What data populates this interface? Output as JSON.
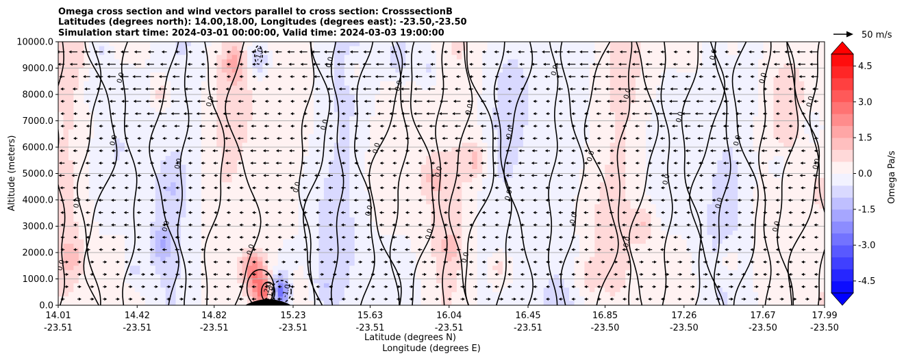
{
  "chart_data": {
    "type": "heatmap",
    "title_lines": [
      "Omega cross section and wind vectors parallel to cross section: CrosssectionB",
      "Latitudes (degrees north): 14.00,18.00, Longitudes (degrees east): -23.50,-23.50",
      "Simulation start time: 2024-03-01 00:00:00, Valid time: 2024-03-03 19:00:00"
    ],
    "xlabel_lines": [
      "Latitude (degrees N)",
      "Longitude (degrees E)"
    ],
    "ylabel": "Altitude (meters)",
    "x_ticks": [
      {
        "lat": "14.01",
        "lon": "-23.51",
        "pos": 14.01
      },
      {
        "lat": "14.42",
        "lon": "-23.51",
        "pos": 14.42
      },
      {
        "lat": "14.82",
        "lon": "-23.51",
        "pos": 14.82
      },
      {
        "lat": "15.23",
        "lon": "-23.51",
        "pos": 15.23
      },
      {
        "lat": "15.63",
        "lon": "-23.51",
        "pos": 15.63
      },
      {
        "lat": "16.04",
        "lon": "-23.51",
        "pos": 16.04
      },
      {
        "lat": "16.45",
        "lon": "-23.51",
        "pos": 16.45
      },
      {
        "lat": "16.85",
        "lon": "-23.50",
        "pos": 16.85
      },
      {
        "lat": "17.26",
        "lon": "-23.50",
        "pos": 17.26
      },
      {
        "lat": "17.67",
        "lon": "-23.50",
        "pos": 17.67
      },
      {
        "lat": "17.99",
        "lon": "-23.50",
        "pos": 17.99
      }
    ],
    "xlim": [
      14.01,
      17.99
    ],
    "y_ticks": [
      "0.0",
      "1000.0",
      "2000.0",
      "3000.0",
      "4000.0",
      "5000.0",
      "6000.0",
      "7000.0",
      "8000.0",
      "9000.0",
      "10000.0"
    ],
    "ylim": [
      0,
      10000
    ],
    "grid": "horizontal",
    "colorbar": {
      "label": "Omega Pa/s",
      "ticks": [
        "-4.5",
        "-3.0",
        "-1.5",
        "0.0",
        "1.5",
        "3.0",
        "4.5"
      ],
      "range": [
        -5.0,
        5.0
      ],
      "extend": "both",
      "colormap": "bwr",
      "low_color": "#0000ff",
      "high_color": "#ff0000"
    },
    "quiver_key": {
      "label": "50 m/s",
      "speed": 50
    },
    "contour_labels": [
      "0.0",
      "-1.0",
      "1.0",
      "2.0"
    ],
    "features": [
      {
        "lat": 14.18,
        "alt": 8200,
        "omega": -0.6
      },
      {
        "lat": 14.22,
        "alt": 9700,
        "omega": -0.8
      },
      {
        "lat": 14.55,
        "alt": 8000,
        "omega": 0.9
      },
      {
        "lat": 14.6,
        "alt": 4500,
        "omega": -0.5
      },
      {
        "lat": 14.55,
        "alt": 2300,
        "omega": -1.0
      },
      {
        "lat": 14.4,
        "alt": 1300,
        "omega": -0.7
      },
      {
        "lat": 14.92,
        "alt": 9200,
        "omega": 1.2
      },
      {
        "lat": 15.05,
        "alt": 9300,
        "omega": -1.2
      },
      {
        "lat": 15.02,
        "alt": 1300,
        "omega": 2.2
      },
      {
        "lat": 15.08,
        "alt": 450,
        "omega": 2.6
      },
      {
        "lat": 15.16,
        "alt": 500,
        "omega": -3.5
      },
      {
        "lat": 15.2,
        "alt": 1800,
        "omega": -0.6
      },
      {
        "lat": 15.4,
        "alt": 700,
        "omega": -0.5
      },
      {
        "lat": 15.55,
        "alt": 9000,
        "omega": 0.7
      },
      {
        "lat": 15.78,
        "alt": 9300,
        "omega": -0.8
      },
      {
        "lat": 15.93,
        "alt": 9000,
        "omega": -0.6
      },
      {
        "lat": 15.96,
        "alt": 4800,
        "omega": 0.8
      },
      {
        "lat": 16.18,
        "alt": 5500,
        "omega": 1.0
      },
      {
        "lat": 16.05,
        "alt": 2200,
        "omega": 0.7
      },
      {
        "lat": 16.3,
        "alt": 1400,
        "omega": 0.9
      },
      {
        "lat": 16.75,
        "alt": 1000,
        "omega": 0.6
      },
      {
        "lat": 17.05,
        "alt": 3100,
        "omega": 0.9
      },
      {
        "lat": 17.5,
        "alt": 1700,
        "omega": 0.8
      },
      {
        "lat": 17.52,
        "alt": 9800,
        "omega": 0.7
      },
      {
        "lat": 17.97,
        "alt": 4300,
        "omega": 0.8
      },
      {
        "lat": 17.92,
        "alt": 6800,
        "omega": -0.6
      },
      {
        "lat": 14.08,
        "alt": 1800,
        "omega": 0.7
      },
      {
        "lat": 17.75,
        "alt": 5300,
        "omega": -0.8
      }
    ],
    "terrain": {
      "center_lat": 15.1,
      "half_width": 0.12,
      "peak_alt": 230
    }
  }
}
